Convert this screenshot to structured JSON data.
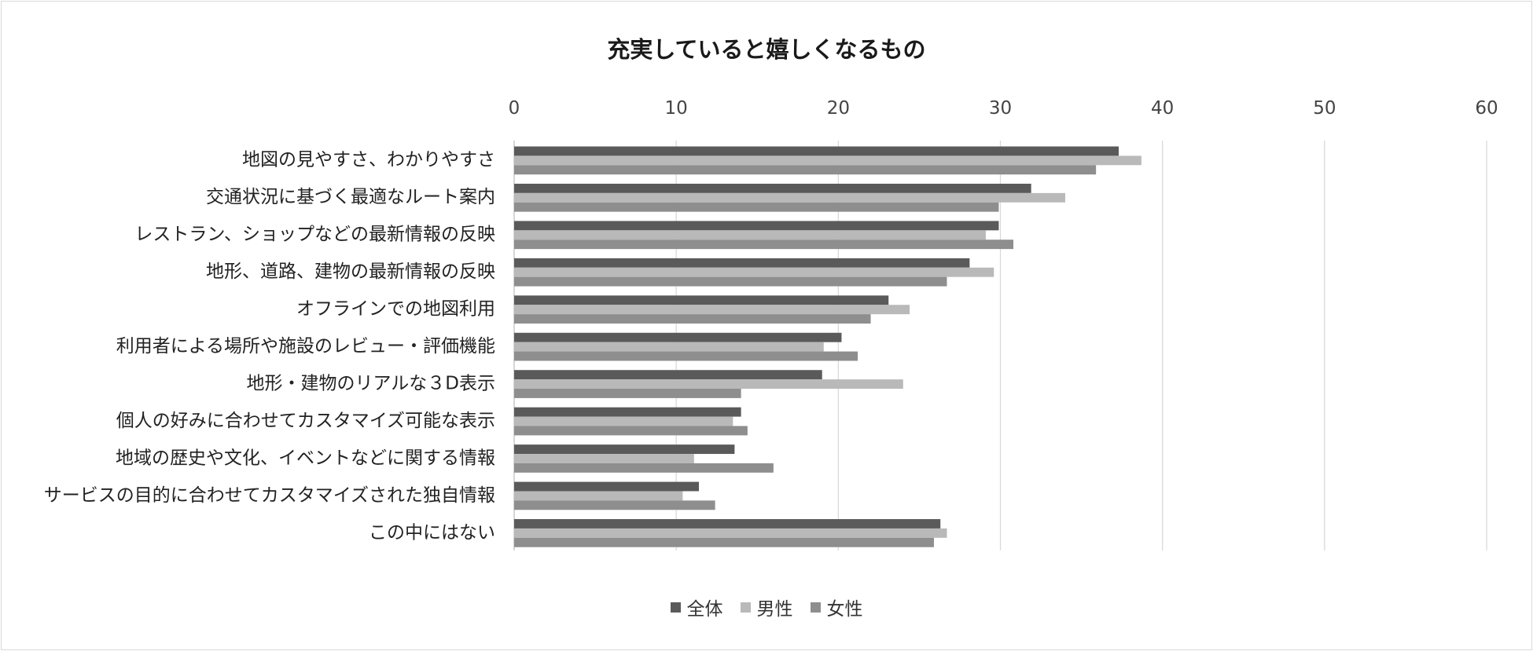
{
  "chart_data": {
    "type": "bar",
    "orientation": "horizontal",
    "title": "充実していると嬉しくなるもの",
    "xlabel": "",
    "ylabel": "",
    "xlim": [
      0,
      60
    ],
    "xticks": [
      0,
      10,
      20,
      30,
      40,
      50,
      60
    ],
    "x_axis_position": "top",
    "grid": true,
    "legend_position": "bottom",
    "categories": [
      "地図の見やすさ、わかりやすさ",
      "交通状況に基づく最適なルート案内",
      "レストラン、ショップなどの最新情報の反映",
      "地形、道路、建物の最新情報の反映",
      "オフラインでの地図利用",
      "利用者による場所や施設のレビュー・評価機能",
      "地形・建物のリアルな３D表示",
      "個人の好みに合わせてカスタマイズ可能な表示",
      "地域の歴史や文化、イベントなどに関する情報",
      "サービスの目的に合わせてカスタマイズされた独自情報",
      "この中にはない"
    ],
    "series": [
      {
        "name": "全体",
        "color": "#5a5a5a",
        "values": [
          37.3,
          31.9,
          29.9,
          28.1,
          23.1,
          20.2,
          19.0,
          14.0,
          13.6,
          11.4,
          26.3
        ]
      },
      {
        "name": "男性",
        "color": "#b9b9b9",
        "values": [
          38.7,
          34.0,
          29.1,
          29.6,
          24.4,
          19.1,
          24.0,
          13.5,
          11.1,
          10.4,
          26.7
        ]
      },
      {
        "name": "女性",
        "color": "#8e8e8e",
        "values": [
          35.9,
          29.9,
          30.8,
          26.7,
          22.0,
          21.2,
          14.0,
          14.4,
          16.0,
          12.4,
          25.9
        ]
      }
    ]
  }
}
